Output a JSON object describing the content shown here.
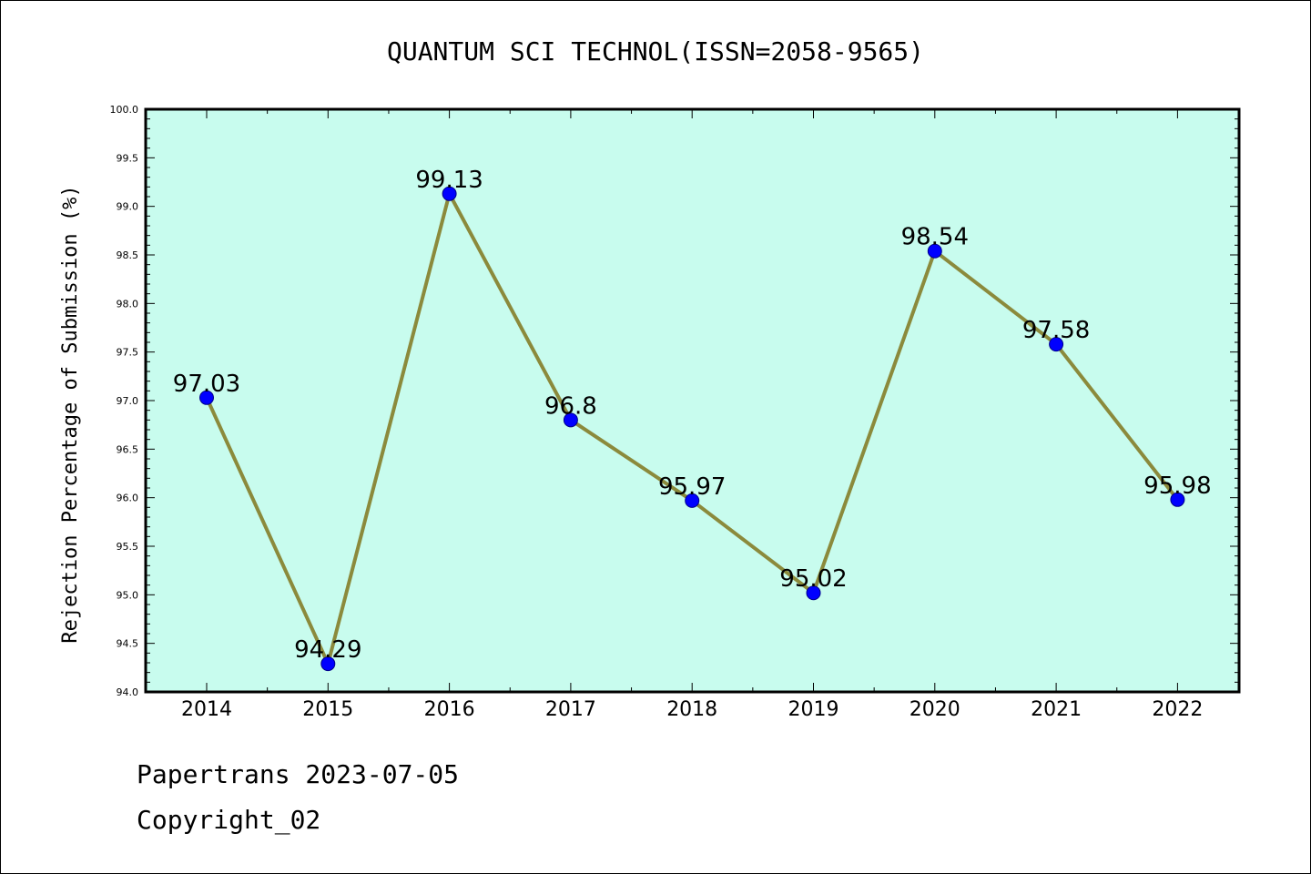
{
  "chart_data": {
    "type": "line",
    "title": "QUANTUM SCI TECHNOL(ISSN=2058-9565)",
    "ylabel": "Rejection Percentage of Submission (%)",
    "xlabel": "",
    "categories": [
      "2014",
      "2015",
      "2016",
      "2017",
      "2018",
      "2019",
      "2020",
      "2021",
      "2022"
    ],
    "series": [
      {
        "values": [
          97.03,
          94.29,
          99.13,
          96.8,
          95.97,
          95.02,
          98.54,
          97.58,
          95.98
        ],
        "labels": [
          "97.03",
          "94.29",
          "99.13",
          "96.8",
          "95.97",
          "95.02",
          "98.54",
          "97.58",
          "95.98"
        ]
      }
    ],
    "ylim": [
      94.0,
      100.0
    ],
    "yticks": [
      "94.0",
      "94.5",
      "95.0",
      "95.5",
      "96.0",
      "96.5",
      "97.0",
      "97.5",
      "98.0",
      "98.5",
      "99.0",
      "99.5",
      "100.0"
    ],
    "grid": false,
    "legend": "none",
    "colors": {
      "plot_background": "#c8fcee",
      "line": "#8b8a3c",
      "marker": "#0000ff"
    }
  },
  "footer": {
    "line1": "Papertrans 2023-07-05",
    "line2": "Copyright_02"
  }
}
